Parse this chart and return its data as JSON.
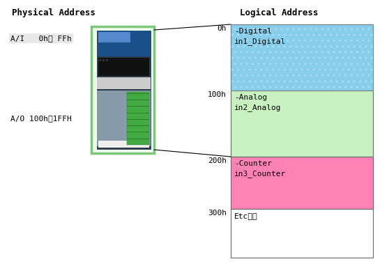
{
  "title_left": "Physical Address",
  "title_right": "Logical Address",
  "physical_label_1": "A/I   0h～ FFh",
  "physical_label_2": "A/O 100h～1FFH",
  "logical_blocks": [
    {
      "label": "-Digital\nin1_Digital",
      "addr": "0h",
      "color": "#87CEEB",
      "hatch": ".."
    },
    {
      "label": "-Analog\nin2_Analog",
      "addr": "100h",
      "color": "#C8F0C0",
      "hatch": ""
    },
    {
      "label": "-Counter\nin3_Counter",
      "addr": "200h",
      "color": "#FF82B4",
      "hatch": ""
    },
    {
      "label": "Etc・・",
      "addr": "300h",
      "color": "#FFFFFF",
      "hatch": ""
    }
  ],
  "background_color": "#FFFFFF",
  "title_fontsize": 9,
  "label_fontsize": 8,
  "addr_fontsize": 8,
  "phys_label_fontsize": 8
}
